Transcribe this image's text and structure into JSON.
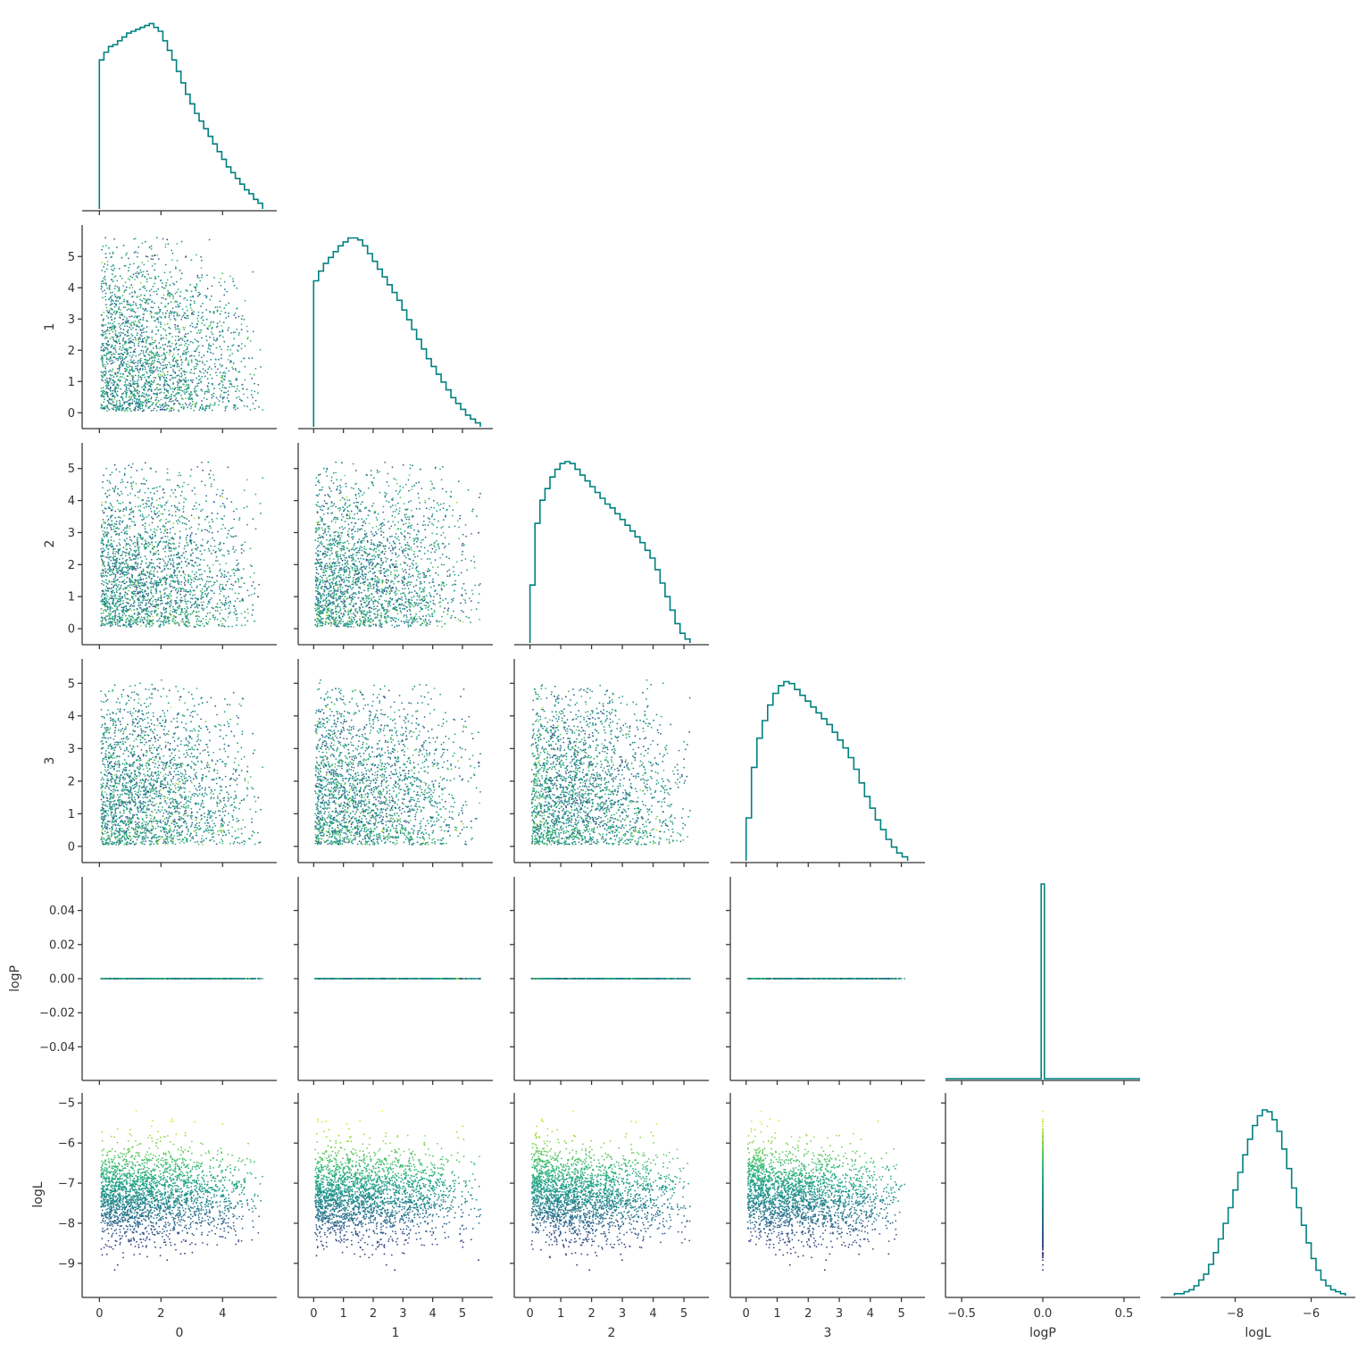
{
  "chart_data": {
    "type": "scatter",
    "title": "",
    "variables": [
      "0",
      "1",
      "2",
      "3",
      "logP",
      "logL"
    ],
    "colormap": "viridis",
    "color_by": "logL",
    "hist_color": "#008080",
    "axes": {
      "0": {
        "ticks": [
          0,
          2,
          4
        ],
        "tick_labels": [
          "0",
          "2",
          "4"
        ],
        "lim": [
          -0.3,
          5.5
        ]
      },
      "1": {
        "ticks": [
          0,
          1,
          2,
          3,
          4,
          5
        ],
        "tick_labels": [
          "0",
          "1",
          "2",
          "3",
          "4",
          "5"
        ],
        "lim": [
          -0.25,
          5.75
        ]
      },
      "2": {
        "ticks": [
          0,
          1,
          2,
          3,
          4,
          5
        ],
        "tick_labels": [
          "0",
          "1",
          "2",
          "3",
          "4",
          "5"
        ],
        "lim": [
          -0.25,
          5.55
        ]
      },
      "3": {
        "ticks": [
          0,
          1,
          2,
          3,
          4,
          5
        ],
        "tick_labels": [
          "0",
          "1",
          "2",
          "3",
          "4",
          "5"
        ],
        "lim": [
          -0.25,
          5.5
        ]
      },
      "logP": {
        "ticks": [
          -0.04,
          -0.02,
          0.0,
          0.02,
          0.04
        ],
        "tick_labels": [
          "−0.04",
          "−0.02",
          "0.00",
          "0.02",
          "0.04"
        ],
        "lim": [
          -0.055,
          0.055
        ],
        "x_ticks": [
          -0.5,
          0.0,
          0.5
        ],
        "x_tick_labels": [
          "−0.5",
          "0.0",
          "0.5"
        ],
        "x_lim": [
          -0.55,
          0.55
        ]
      },
      "logL": {
        "ticks": [
          -9,
          -8,
          -7,
          -6,
          -5
        ],
        "tick_labels": [
          "−9",
          "−8",
          "−7",
          "−6",
          "−5"
        ],
        "lim": [
          -9.65,
          -4.95
        ],
        "x_ticks": [
          -8,
          -6
        ],
        "x_tick_labels": [
          "−8",
          "−6"
        ],
        "x_lim": [
          -9.75,
          -5.05
        ]
      }
    },
    "histograms": {
      "0": {
        "range": [
          0,
          5.3
        ],
        "counts": [
          0.78,
          0.82,
          0.85,
          0.86,
          0.88,
          0.9,
          0.92,
          0.93,
          0.94,
          0.95,
          0.96,
          0.97,
          0.95,
          0.93,
          0.88,
          0.83,
          0.78,
          0.72,
          0.66,
          0.6,
          0.55,
          0.5,
          0.46,
          0.42,
          0.38,
          0.34,
          0.3,
          0.26,
          0.22,
          0.19,
          0.16,
          0.13,
          0.1,
          0.08,
          0.05,
          0.03
        ]
      },
      "1": {
        "range": [
          0,
          5.6
        ],
        "counts": [
          0.75,
          0.8,
          0.84,
          0.87,
          0.9,
          0.93,
          0.95,
          0.97,
          0.97,
          0.96,
          0.93,
          0.89,
          0.85,
          0.81,
          0.77,
          0.73,
          0.69,
          0.65,
          0.6,
          0.55,
          0.5,
          0.45,
          0.4,
          0.35,
          0.31,
          0.27,
          0.23,
          0.19,
          0.15,
          0.12,
          0.09,
          0.06,
          0.04,
          0.02
        ]
      },
      "2": {
        "range": [
          0,
          5.2
        ],
        "counts": [
          0.3,
          0.62,
          0.74,
          0.8,
          0.86,
          0.9,
          0.93,
          0.94,
          0.93,
          0.9,
          0.87,
          0.84,
          0.81,
          0.78,
          0.75,
          0.72,
          0.7,
          0.67,
          0.64,
          0.61,
          0.58,
          0.55,
          0.52,
          0.48,
          0.44,
          0.38,
          0.31,
          0.24,
          0.17,
          0.1,
          0.05,
          0.02
        ]
      },
      "3": {
        "range": [
          0,
          5.2
        ],
        "counts": [
          0.22,
          0.48,
          0.63,
          0.72,
          0.8,
          0.86,
          0.9,
          0.92,
          0.91,
          0.88,
          0.85,
          0.82,
          0.79,
          0.76,
          0.73,
          0.7,
          0.66,
          0.62,
          0.58,
          0.53,
          0.47,
          0.4,
          0.33,
          0.27,
          0.21,
          0.16,
          0.11,
          0.07,
          0.04,
          0.02
        ]
      },
      "logP": {
        "range": [
          -0.01,
          0.01
        ],
        "counts": [
          1.0
        ]
      },
      "logL": {
        "range": [
          -9.6,
          -5.1
        ],
        "counts": [
          0.01,
          0.01,
          0.02,
          0.03,
          0.05,
          0.08,
          0.11,
          0.16,
          0.22,
          0.29,
          0.37,
          0.45,
          0.54,
          0.63,
          0.72,
          0.8,
          0.87,
          0.92,
          0.95,
          0.94,
          0.9,
          0.84,
          0.75,
          0.65,
          0.55,
          0.45,
          0.36,
          0.27,
          0.19,
          0.13,
          0.08,
          0.05,
          0.03,
          0.02,
          0.01
        ]
      }
    }
  }
}
